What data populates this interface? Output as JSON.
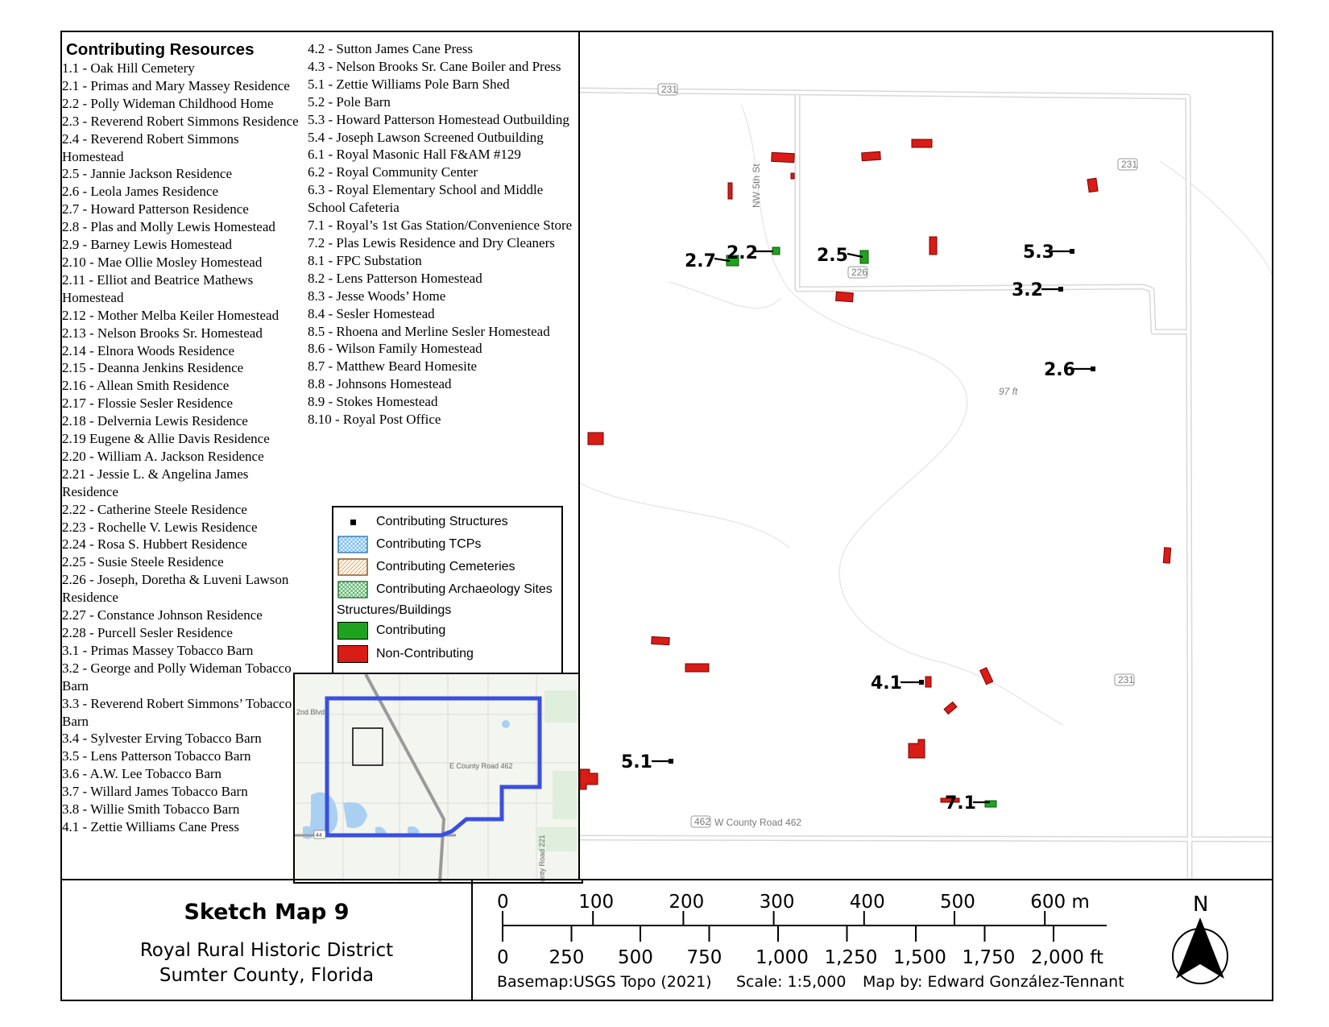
{
  "contributing_header": "Contributing Resources",
  "resources_col1": [
    "1.1 - Oak Hill Cemetery",
    "2.1 - Primas and Mary Massey Residence",
    "2.2 - Polly Wideman Childhood Home",
    "2.3 - Reverend Robert Simmons Residence",
    "2.4 - Reverend Robert Simmons Homestead",
    "2.5 - Jannie Jackson Residence",
    "2.6 - Leola James Residence",
    "2.7 - Howard Patterson Residence",
    "2.8 - Plas and Molly Lewis Homestead",
    "2.9 - Barney Lewis Homestead",
    "2.10 - Mae Ollie Mosley Homestead",
    "2.11 - Elliot and Beatrice Mathews Homestead",
    "2.12 - Mother Melba Keiler Homestead",
    "2.13 - Nelson Brooks Sr. Homestead",
    "2.14 - Elnora Woods Residence",
    "2.15 - Deanna Jenkins Residence",
    "2.16 - Allean Smith Residence",
    "2.17 - Flossie Sesler Residence",
    "2.18 - Delvernia Lewis Residence",
    "2.19 Eugene & Allie Davis Residence",
    "2.20 - William A. Jackson Residence",
    "2.21 - Jessie L. & Angelina James Residence",
    "2.22 - Catherine Steele Residence",
    "2.23 -  Rochelle V. Lewis Residence",
    "2.24 - Rosa S. Hubbert Residence",
    "2.25 - Susie Steele Residence",
    "2.26 - Joseph, Doretha & Luveni Lawson Residence",
    "2.27 - Constance Johnson Residence",
    "2.28 - Purcell Sesler Residence",
    "3.1 - Primas Massey Tobacco Barn",
    "3.2 - George and Polly Wideman Tobacco Barn",
    "3.3 - Reverend Robert Simmons’ Tobacco Barn",
    "3.4 - Sylvester Erving Tobacco Barn",
    "3.5 - Lens Patterson Tobacco Barn",
    "3.6 - A.W. Lee Tobacco Barn",
    "3.7 - Willard James Tobacco Barn",
    "3.8 - Willie Smith Tobacco Barn",
    "4.1 - Zettie Williams Cane Press"
  ],
  "resources_col2": [
    "4.2 - Sutton James Cane Press",
    "4.3 - Nelson Brooks Sr. Cane Boiler and Press",
    "5.1 - Zettie Williams Pole Barn Shed",
    "5.2 - Pole Barn",
    "5.3 - Howard Patterson Homestead Outbuilding",
    "5.4 - Joseph Lawson Screened Outbuilding",
    "6.1 - Royal Masonic Hall F&AM #129",
    "6.2 - Royal Community Center",
    "6.3 - Royal Elementary School and Middle School Cafeteria",
    "7.1 - Royal’s 1st Gas Station/Convenience Store",
    "7.2 - Plas Lewis Residence and Dry Cleaners",
    "8.1 - FPC Substation",
    "8.2 - Lens Patterson Homestead",
    "8.3 - Jesse Woods’ Home",
    "8.4 - Sesler Homestead",
    "8.5 - Rhoena and Merline Sesler Homestead",
    "8.6 - Wilson Family Homestead",
    "8.7 - Matthew Beard Homesite",
    "8.8 - Johnsons Homestead",
    "8.9 - Stokes Homestead",
    "8.10 - Royal Post Office"
  ],
  "legend": {
    "structures": "Contributing Structures",
    "tcps": "Contributing TCPs",
    "cemeteries": "Contributing Cemeteries",
    "archaeology": "Contributing Archaeology Sites",
    "section": "Structures/Buildings",
    "contributing": "Contributing",
    "noncontributing": "Non-Contributing"
  },
  "inset": {
    "road1": "2nd Blvd",
    "road2": "E County Road 462",
    "road3": "unty Road 221",
    "shield": "44"
  },
  "map": {
    "street_nw5": "NW 5th St",
    "road_462": "W County Road 462",
    "shield_231": "231",
    "shield_226": "226",
    "shield_462": "462",
    "elevation": "97 ft",
    "labels": [
      "2.7",
      "2.2",
      "2.5",
      "5.3",
      "3.2",
      "2.6",
      "4.1",
      "5.1",
      "7.1"
    ]
  },
  "title": {
    "main": "Sketch Map 9",
    "sub1": "Royal Rural Historic District",
    "sub2": "Sumter County, Florida"
  },
  "scale": {
    "meters": [
      "0",
      "100",
      "200",
      "300",
      "400",
      "500",
      "600 m"
    ],
    "feet": [
      "0",
      "250",
      "500",
      "750",
      "1,000",
      "1,250",
      "1,500",
      "1,750",
      "2,000 ft"
    ],
    "basemap": "Basemap:USGS Topo (2021)",
    "scale_text": "Scale: 1:5,000",
    "author": "Map by: Edward González-Tennant",
    "north": "N"
  },
  "colors": {
    "contributing": "#1fa31f",
    "noncontributing": "#d81c16",
    "boundary": "#3a4fe0"
  }
}
